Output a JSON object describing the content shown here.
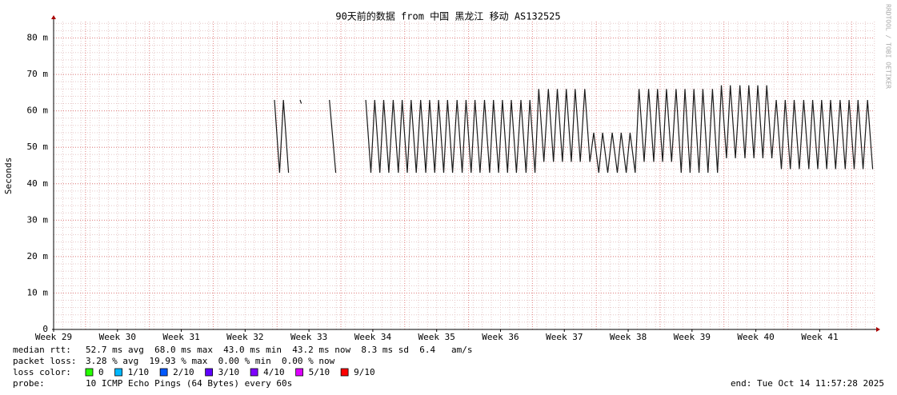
{
  "chart_data": {
    "type": "line",
    "title": "90天前的数据 from 中国 黑龙江 移动 AS132525",
    "ylabel": "Seconds",
    "watermark": "RRDTOOL / TOBI OETIKER",
    "ylim": [
      0,
      84.5
    ],
    "yticks": [
      0,
      {
        "value": 10,
        "label": "10 m"
      },
      {
        "value": 20,
        "label": "20 m"
      },
      {
        "value": 30,
        "label": "30 m"
      },
      {
        "value": 40,
        "label": "40 m"
      },
      {
        "value": 50,
        "label": "50 m"
      },
      {
        "value": 60,
        "label": "60 m"
      },
      {
        "value": 70,
        "label": "70 m"
      },
      {
        "value": 80,
        "label": "80 m"
      }
    ],
    "xlim": [
      29,
      41.86
    ],
    "xticks": [
      {
        "value": 29,
        "label": "Week 29"
      },
      {
        "value": 30,
        "label": "Week 30"
      },
      {
        "value": 31,
        "label": "Week 31"
      },
      {
        "value": 32,
        "label": "Week 32"
      },
      {
        "value": 33,
        "label": "Week 33"
      },
      {
        "value": 34,
        "label": "Week 34"
      },
      {
        "value": 35,
        "label": "Week 35"
      },
      {
        "value": 36,
        "label": "Week 36"
      },
      {
        "value": 37,
        "label": "Week 37"
      },
      {
        "value": 38,
        "label": "Week 38"
      },
      {
        "value": 39,
        "label": "Week 39"
      },
      {
        "value": 40,
        "label": "Week 40"
      },
      {
        "value": 41,
        "label": "Week 41"
      }
    ],
    "grid": true,
    "x": [
      32.46,
      32.54,
      32.6,
      32.68,
      32.75,
      32.86,
      32.88,
      33.0,
      33.32,
      33.42,
      33.6,
      33.89,
      33.97,
      34.03,
      34.11,
      34.17,
      34.25,
      34.32,
      34.4,
      34.46,
      34.54,
      34.6,
      34.68,
      34.75,
      34.83,
      34.89,
      34.97,
      35.03,
      35.11,
      35.17,
      35.25,
      35.32,
      35.4,
      35.46,
      35.54,
      35.6,
      35.68,
      35.75,
      35.83,
      35.89,
      35.97,
      36.03,
      36.11,
      36.17,
      36.25,
      36.32,
      36.4,
      36.46,
      36.54,
      36.6,
      36.68,
      36.75,
      36.83,
      36.89,
      36.97,
      37.03,
      37.11,
      37.17,
      37.25,
      37.32,
      37.4,
      37.46,
      37.54,
      37.6,
      37.68,
      37.75,
      37.83,
      37.89,
      37.97,
      38.03,
      38.11,
      38.17,
      38.25,
      38.32,
      38.4,
      38.46,
      38.54,
      38.6,
      38.68,
      38.75,
      38.83,
      38.89,
      38.97,
      39.03,
      39.11,
      39.17,
      39.25,
      39.32,
      39.4,
      39.46,
      39.54,
      39.6,
      39.68,
      39.75,
      39.83,
      39.89,
      39.97,
      40.03,
      40.11,
      40.17,
      40.25,
      40.32,
      40.4,
      40.46,
      40.54,
      40.6,
      40.68,
      40.75,
      40.83,
      40.89,
      40.97,
      41.03,
      41.11,
      41.17,
      41.25,
      41.32,
      41.4,
      41.46,
      41.54,
      41.6,
      41.68,
      41.75,
      41.83
    ],
    "series": [
      {
        "name": "median rtt",
        "color": "#1a1a1a",
        "values": [
          63,
          43,
          63,
          43,
          null,
          63,
          62,
          null,
          63,
          43,
          null,
          63,
          43,
          63,
          43,
          63,
          43,
          63,
          43,
          63,
          43,
          63,
          43,
          63,
          43,
          63,
          43,
          63,
          43,
          63,
          43,
          63,
          43,
          63,
          43,
          63,
          43,
          63,
          43,
          63,
          43,
          63,
          43,
          63,
          43,
          63,
          43,
          63,
          43,
          66,
          46,
          66,
          46,
          66,
          46,
          66,
          46,
          66,
          46,
          66,
          46,
          54,
          43,
          54,
          43,
          54,
          43,
          54,
          43,
          54,
          43,
          66,
          46,
          66,
          46,
          66,
          46,
          66,
          46,
          66,
          43,
          66,
          43,
          66,
          43,
          66,
          43,
          66,
          43,
          67,
          47,
          67,
          47,
          67,
          47,
          67,
          47,
          67,
          47,
          67,
          47,
          63,
          44,
          63,
          44,
          63,
          44,
          63,
          44,
          63,
          44,
          63,
          44,
          63,
          44,
          63,
          44,
          63,
          44,
          63,
          44,
          63,
          44
        ]
      }
    ],
    "stats": [
      {
        "label": "median rtt:",
        "text": "52.7 ms avg  68.0 ms max  43.0 ms min  43.2 ms now  8.3 ms sd  6.4   am/s"
      },
      {
        "label": "packet loss:",
        "text": "3.28 % avg  19.93 % max  0.00 % min  0.00 % now"
      }
    ],
    "loss_label": "loss color:",
    "loss_colors": [
      {
        "label": "0",
        "color": "#26ff00"
      },
      {
        "label": "1/10",
        "color": "#00b8ff"
      },
      {
        "label": "2/10",
        "color": "#0059ff"
      },
      {
        "label": "3/10",
        "color": "#5e00ff"
      },
      {
        "label": "4/10",
        "color": "#7e00ff"
      },
      {
        "label": "5/10",
        "color": "#dd00ff"
      },
      {
        "label": "9/10",
        "color": "#ff0000"
      }
    ],
    "probe_label": "probe:",
    "probe": "10 ICMP Echo Pings (64 Bytes) every 60s",
    "end": "end: Tue Oct 14 11:57:28 2025"
  }
}
